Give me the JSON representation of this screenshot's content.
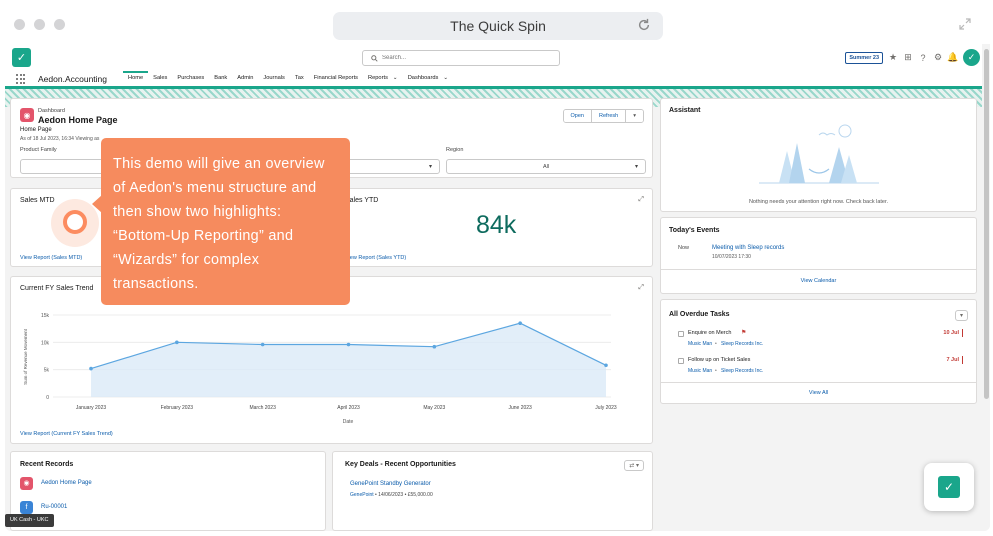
{
  "browser": {
    "title": "The Quick Spin"
  },
  "header": {
    "search_placeholder": "Search...",
    "release_badge": "Summer 23",
    "icons": [
      "favorite-icon",
      "add-icon",
      "help-icon",
      "settings-icon",
      "notifications-icon"
    ]
  },
  "nav": {
    "app_name": "Aedon.Accounting",
    "items": [
      "Home",
      "Sales",
      "Purchases",
      "Bank",
      "Admin",
      "Journals",
      "Tax",
      "Financial Reports",
      "Reports",
      "Dashboards"
    ],
    "active": "Home"
  },
  "dashboard": {
    "type_label": "Dashboard",
    "title": "Aedon Home Page",
    "subtitle": "Home Page",
    "as_of": "As of 18 Jul 2023, 16:34 Viewing as",
    "open_label": "Open",
    "refresh_label": "Refresh",
    "filter1_label": "Product Family",
    "filter2_label": "Region",
    "filter2_value": "All"
  },
  "sales_mtd": {
    "title": "Sales MTD",
    "link": "View Report (Sales MTD)"
  },
  "sales_ytd": {
    "title": "Sales YTD",
    "value": "84k",
    "link": "View Report (Sales YTD)"
  },
  "trend": {
    "title": "Current FY Sales Trend",
    "link": "View Report (Current FY Sales Trend)"
  },
  "chart_data": {
    "type": "area",
    "title": "Current FY Sales Trend",
    "xlabel": "Date",
    "ylabel": "Sum of Revenue Movement",
    "categories": [
      "January 2023",
      "February 2023",
      "March 2023",
      "April 2023",
      "May 2023",
      "June 2023",
      "July 2023"
    ],
    "values": [
      5.2,
      10,
      9.6,
      9.6,
      9.2,
      13.5,
      5.8
    ],
    "yticks": [
      "0",
      "5k",
      "10k",
      "15k"
    ],
    "ylim": [
      0,
      15
    ],
    "color": "#5ca6e0"
  },
  "recent": {
    "title": "Recent Records",
    "items": [
      "Aedon Home Page",
      "Ru-00001"
    ]
  },
  "deals": {
    "title": "Key Deals - Recent Opportunities",
    "name": "GenePoint Standby Generator",
    "detail_account": "GenePoint",
    "detail_rest": " • 14/06/2023 • £55,000.00"
  },
  "assistant": {
    "title": "Assistant",
    "empty": "Nothing needs your attention right now. Check back later."
  },
  "events": {
    "title": "Today's Events",
    "time": "Now",
    "event_name": "Meeting with Sleep records",
    "event_time": "10/07/2023 17:30",
    "view": "View Calendar"
  },
  "tasks": {
    "title": "All Overdue Tasks",
    "items": [
      {
        "name": "Enquire on Merch",
        "who": "Music Man",
        "what": "Sleep Records Inc.",
        "date": "10 Jul"
      },
      {
        "name": "Follow up on Ticket Sales",
        "who": "Music Man",
        "what": "Sleep Records Inc.",
        "date": "7 Jul"
      }
    ],
    "view": "View All"
  },
  "tour": {
    "text": "This demo will give an overview of Aedon's menu structure and then show two highlights: “Bottom-Up Reporting” and “Wizards” for complex transactions."
  },
  "footer": {
    "badge": "UK Cash - UKC"
  }
}
